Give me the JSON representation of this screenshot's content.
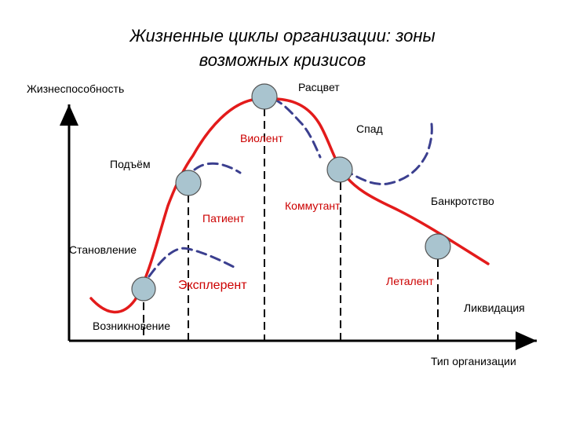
{
  "title": {
    "line1": "Жизненные циклы организации: зоны",
    "line2": "возможных кризисов"
  },
  "axes": {
    "y_label": "Жизнеспособность",
    "x_label": "Тип организации"
  },
  "stages": {
    "vozniknovenie": "Возникновение",
    "stanovlenie": "Становление",
    "podyom": "Подъём",
    "rastsvet": "Расцвет",
    "spad": "Спад",
    "bankrotstvo": "Банкротство",
    "likvidatsiya": "Ликвидация"
  },
  "types": {
    "eksplerent": "Эксплерент",
    "patient": "Патиент",
    "violent": "Виолент",
    "kommutant": "Коммутант",
    "letalent": "Леталент"
  },
  "colors": {
    "curve": "#e31b1b",
    "dashed_curve": "#3b3f8f",
    "node_fill": "#a9c4cf",
    "node_stroke": "#555555",
    "red_text": "#cc0000"
  }
}
